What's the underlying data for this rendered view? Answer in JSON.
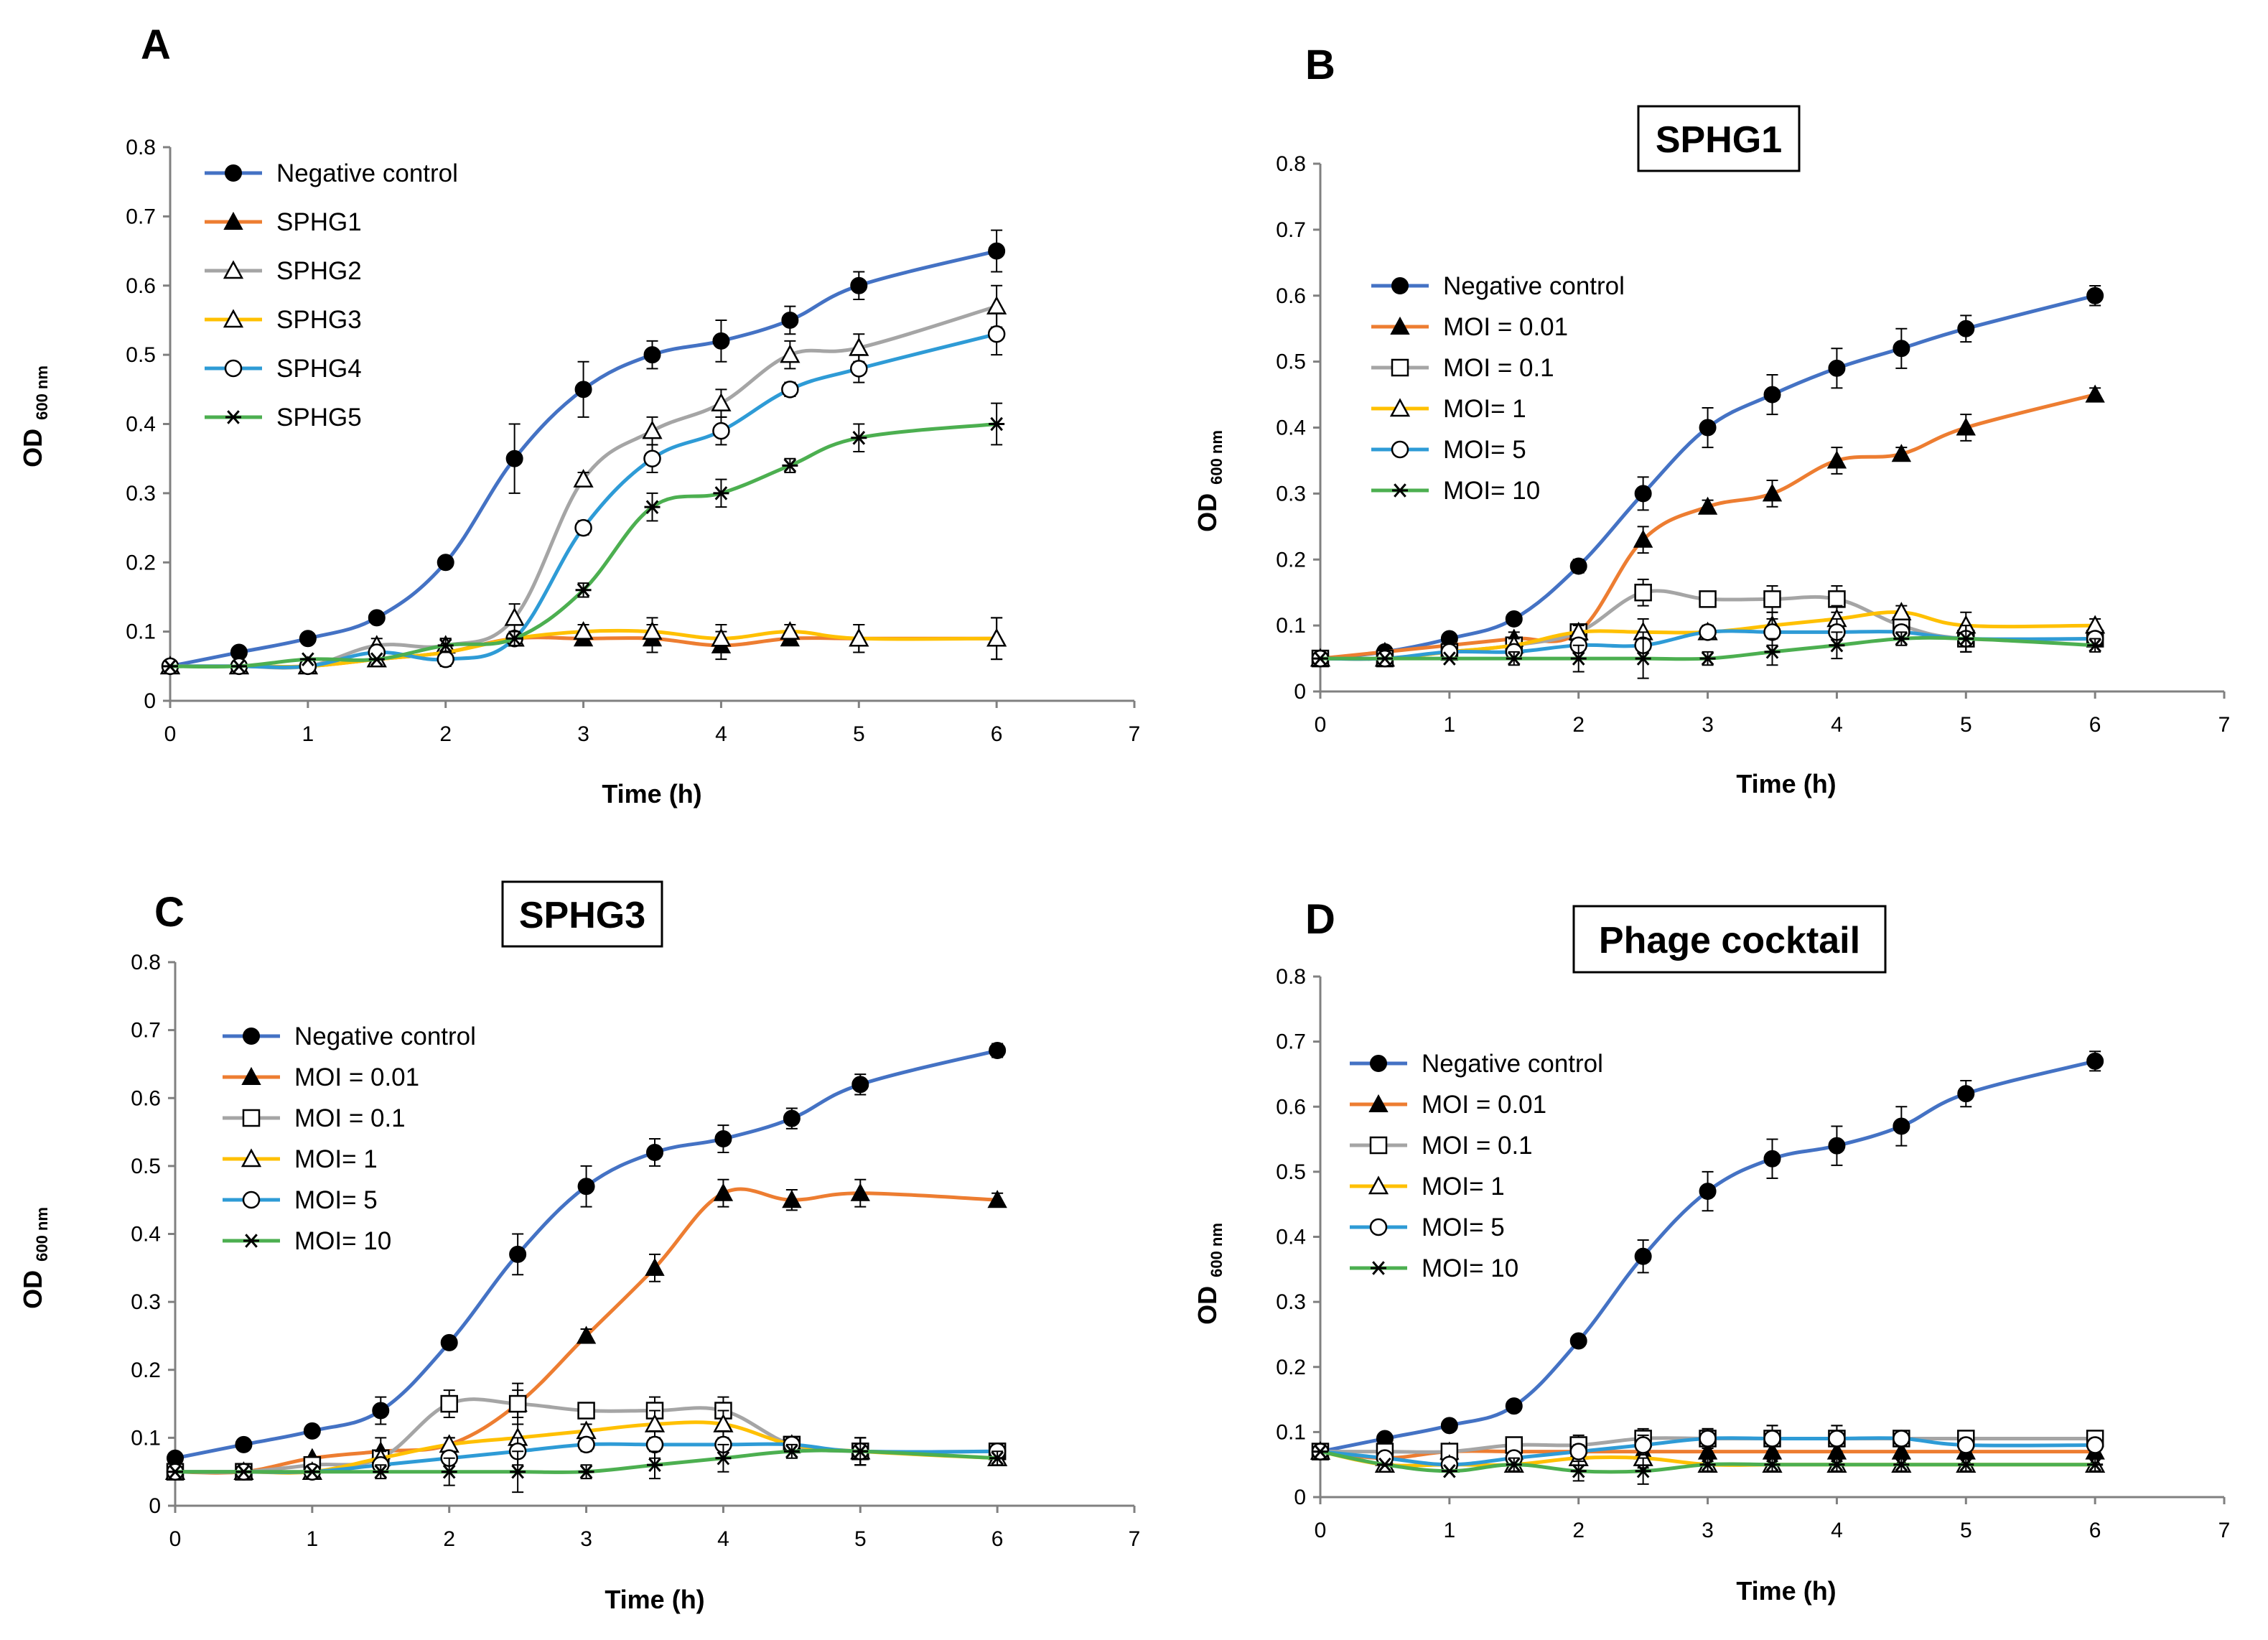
{
  "figure": {
    "panels": [
      {
        "letter": "A",
        "box_title": "",
        "xlabel": "Time (h)",
        "ylabel_main": "OD",
        "ylabel_sub": "600 nm"
      },
      {
        "letter": "B",
        "box_title": "SPHG1",
        "xlabel": "Time (h)",
        "ylabel_main": "OD",
        "ylabel_sub": "600 nm"
      },
      {
        "letter": "C",
        "box_title": "SPHG3",
        "xlabel": "Time (h)",
        "ylabel_main": "OD",
        "ylabel_sub": "600 nm"
      },
      {
        "letter": "D",
        "box_title": "Phage cocktail",
        "xlabel": "Time (h)",
        "ylabel_main": "OD",
        "ylabel_sub": "600 nm"
      }
    ]
  },
  "chart_data": [
    {
      "type": "line",
      "panel": "A",
      "title": "",
      "xlabel": "Time (h)",
      "ylabel": "OD 600 nm",
      "xlim": [
        0,
        7
      ],
      "ylim": [
        0,
        0.8
      ],
      "xticks": [
        "0",
        "1",
        "2",
        "3",
        "4",
        "5",
        "6",
        "7"
      ],
      "yticks": [
        "0",
        "0.1",
        "0.2",
        "0.3",
        "0.4",
        "0.5",
        "0.6",
        "0.7",
        "0.8"
      ],
      "legend_position": "top-left",
      "x": [
        0,
        0.5,
        1,
        1.5,
        2,
        2.5,
        3,
        3.5,
        4,
        4.5,
        5,
        6
      ],
      "series": [
        {
          "name": "Negative control",
          "color": "#4472C4",
          "marker": "circle-filled",
          "values": [
            0.05,
            0.07,
            0.09,
            0.12,
            0.2,
            0.35,
            0.45,
            0.5,
            0.52,
            0.55,
            0.6,
            0.65
          ],
          "errors": [
            0.005,
            0.005,
            0.005,
            0.005,
            0.005,
            0.05,
            0.04,
            0.02,
            0.03,
            0.02,
            0.02,
            0.03
          ]
        },
        {
          "name": "SPHG1",
          "color": "#ED7D31",
          "marker": "triangle-filled",
          "values": [
            0.05,
            0.05,
            0.05,
            0.06,
            0.07,
            0.09,
            0.09,
            0.09,
            0.08,
            0.09,
            0.09,
            0.09
          ],
          "errors": [
            0.005,
            0.005,
            0.005,
            0.005,
            0.005,
            0.01,
            0.01,
            0.02,
            0.02,
            0.01,
            0.02,
            0.03
          ]
        },
        {
          "name": "SPHG2",
          "color": "#A5A5A5",
          "marker": "triangle-open",
          "values": [
            0.05,
            0.05,
            0.05,
            0.08,
            0.08,
            0.12,
            0.32,
            0.39,
            0.43,
            0.5,
            0.51,
            0.57
          ],
          "errors": [
            0.005,
            0.005,
            0.005,
            0.01,
            0.01,
            0.02,
            0.01,
            0.02,
            0.02,
            0.02,
            0.02,
            0.03
          ]
        },
        {
          "name": "SPHG3",
          "color": "#FFC000",
          "marker": "triangle-open",
          "values": [
            0.05,
            0.05,
            0.05,
            0.06,
            0.07,
            0.09,
            0.1,
            0.1,
            0.09,
            0.1,
            0.09,
            0.09
          ],
          "errors": [
            0.005,
            0.005,
            0.005,
            0.005,
            0.005,
            0.01,
            0.01,
            0.02,
            0.02,
            0.01,
            0.02,
            0.03
          ]
        },
        {
          "name": "SPHG4",
          "color": "#2E9BD6",
          "marker": "circle-open",
          "values": [
            0.05,
            0.05,
            0.05,
            0.07,
            0.06,
            0.09,
            0.25,
            0.35,
            0.39,
            0.45,
            0.48,
            0.53
          ],
          "errors": [
            0.005,
            0.005,
            0.005,
            0.01,
            0.01,
            0.01,
            0.01,
            0.02,
            0.02,
            0.01,
            0.02,
            0.03
          ]
        },
        {
          "name": "SPHG5",
          "color": "#4CAF50",
          "marker": "asterisk",
          "values": [
            0.05,
            0.05,
            0.06,
            0.06,
            0.08,
            0.09,
            0.16,
            0.28,
            0.3,
            0.34,
            0.38,
            0.4
          ],
          "errors": [
            0.005,
            0.005,
            0.005,
            0.005,
            0.01,
            0.01,
            0.01,
            0.02,
            0.02,
            0.01,
            0.02,
            0.03
          ]
        }
      ]
    },
    {
      "type": "line",
      "panel": "B",
      "title": "SPHG1",
      "xlabel": "Time (h)",
      "ylabel": "OD 600 nm",
      "xlim": [
        0,
        7
      ],
      "ylim": [
        0,
        0.8
      ],
      "xticks": [
        "0",
        "1",
        "2",
        "3",
        "4",
        "5",
        "6",
        "7"
      ],
      "yticks": [
        "0",
        "0.1",
        "0.2",
        "0.3",
        "0.4",
        "0.5",
        "0.6",
        "0.7",
        "0.8"
      ],
      "legend_position": "middle-left",
      "x": [
        0,
        0.5,
        1,
        1.5,
        2,
        2.5,
        3,
        3.5,
        4,
        4.5,
        5,
        6
      ],
      "series": [
        {
          "name": "Negative control",
          "color": "#4472C4",
          "marker": "circle-filled",
          "values": [
            0.05,
            0.06,
            0.08,
            0.11,
            0.19,
            0.3,
            0.4,
            0.45,
            0.49,
            0.52,
            0.55,
            0.6
          ],
          "errors": [
            0.005,
            0.005,
            0.005,
            0.005,
            0.01,
            0.025,
            0.03,
            0.03,
            0.03,
            0.03,
            0.02,
            0.015
          ]
        },
        {
          "name": "MOI = 0.01",
          "color": "#ED7D31",
          "marker": "triangle-filled",
          "values": [
            0.05,
            0.06,
            0.07,
            0.08,
            0.09,
            0.23,
            0.28,
            0.3,
            0.35,
            0.36,
            0.4,
            0.45
          ],
          "errors": [
            0.005,
            0.005,
            0.005,
            0.01,
            0.01,
            0.02,
            0.01,
            0.02,
            0.02,
            0.01,
            0.02,
            0.01
          ]
        },
        {
          "name": "MOI = 0.1",
          "color": "#A5A5A5",
          "marker": "square-open",
          "values": [
            0.05,
            0.05,
            0.06,
            0.07,
            0.09,
            0.15,
            0.14,
            0.14,
            0.14,
            0.1,
            0.08,
            0.08
          ],
          "errors": [
            0.005,
            0.005,
            0.005,
            0.01,
            0.01,
            0.02,
            0.01,
            0.02,
            0.02,
            0.02,
            0.02,
            0.01
          ]
        },
        {
          "name": "MOI= 1",
          "color": "#FFC000",
          "marker": "triangle-open",
          "values": [
            0.05,
            0.05,
            0.06,
            0.07,
            0.09,
            0.09,
            0.09,
            0.1,
            0.11,
            0.12,
            0.1,
            0.1
          ],
          "errors": [
            0.005,
            0.005,
            0.005,
            0.01,
            0.01,
            0.02,
            0.01,
            0.02,
            0.02,
            0.01,
            0.02,
            0.01
          ]
        },
        {
          "name": "MOI= 5",
          "color": "#2E9BD6",
          "marker": "circle-open",
          "values": [
            0.05,
            0.05,
            0.06,
            0.06,
            0.07,
            0.07,
            0.09,
            0.09,
            0.09,
            0.09,
            0.08,
            0.08
          ],
          "errors": [
            0.005,
            0.005,
            0.005,
            0.01,
            0.01,
            0.02,
            0.01,
            0.02,
            0.02,
            0.01,
            0.02,
            0.01
          ]
        },
        {
          "name": "MOI= 10",
          "color": "#4CAF50",
          "marker": "asterisk",
          "values": [
            0.05,
            0.05,
            0.05,
            0.05,
            0.05,
            0.05,
            0.05,
            0.06,
            0.07,
            0.08,
            0.08,
            0.07
          ],
          "errors": [
            0.005,
            0.005,
            0.005,
            0.01,
            0.02,
            0.03,
            0.01,
            0.02,
            0.02,
            0.01,
            0.02,
            0.01
          ]
        }
      ]
    },
    {
      "type": "line",
      "panel": "C",
      "title": "SPHG3",
      "xlabel": "Time (h)",
      "ylabel": "OD 600 nm",
      "xlim": [
        0,
        7
      ],
      "ylim": [
        0,
        0.8
      ],
      "xticks": [
        "0",
        "1",
        "2",
        "3",
        "4",
        "5",
        "6",
        "7"
      ],
      "yticks": [
        "0",
        "0.1",
        "0.2",
        "0.3",
        "0.4",
        "0.5",
        "0.6",
        "0.7",
        "0.8"
      ],
      "legend_position": "top-left",
      "x": [
        0,
        0.5,
        1,
        1.5,
        2,
        2.5,
        3,
        3.5,
        4,
        4.5,
        5,
        6
      ],
      "series": [
        {
          "name": "Negative control",
          "color": "#4472C4",
          "marker": "circle-filled",
          "values": [
            0.07,
            0.09,
            0.11,
            0.14,
            0.24,
            0.37,
            0.47,
            0.52,
            0.54,
            0.57,
            0.62,
            0.67
          ],
          "errors": [
            0.005,
            0.005,
            0.005,
            0.02,
            0.005,
            0.03,
            0.03,
            0.02,
            0.02,
            0.015,
            0.015,
            0.01
          ]
        },
        {
          "name": "MOI = 0.01",
          "color": "#ED7D31",
          "marker": "triangle-filled",
          "values": [
            0.05,
            0.05,
            0.07,
            0.08,
            0.09,
            0.15,
            0.25,
            0.35,
            0.46,
            0.45,
            0.46,
            0.45
          ],
          "errors": [
            0.005,
            0.005,
            0.005,
            0.02,
            0.01,
            0.02,
            0.01,
            0.02,
            0.02,
            0.015,
            0.02,
            0.01
          ]
        },
        {
          "name": "MOI = 0.1",
          "color": "#A5A5A5",
          "marker": "square-open",
          "values": [
            0.05,
            0.05,
            0.06,
            0.07,
            0.15,
            0.15,
            0.14,
            0.14,
            0.14,
            0.09,
            0.08,
            0.08
          ],
          "errors": [
            0.005,
            0.005,
            0.005,
            0.01,
            0.02,
            0.03,
            0.01,
            0.02,
            0.02,
            0.01,
            0.02,
            0.01
          ]
        },
        {
          "name": "MOI= 1",
          "color": "#FFC000",
          "marker": "triangle-open",
          "values": [
            0.05,
            0.05,
            0.05,
            0.07,
            0.09,
            0.1,
            0.11,
            0.12,
            0.12,
            0.09,
            0.08,
            0.07
          ],
          "errors": [
            0.005,
            0.005,
            0.005,
            0.01,
            0.01,
            0.02,
            0.01,
            0.02,
            0.02,
            0.01,
            0.02,
            0.01
          ]
        },
        {
          "name": "MOI= 5",
          "color": "#2E9BD6",
          "marker": "circle-open",
          "values": [
            0.05,
            0.05,
            0.05,
            0.06,
            0.07,
            0.08,
            0.09,
            0.09,
            0.09,
            0.09,
            0.08,
            0.08
          ],
          "errors": [
            0.005,
            0.005,
            0.005,
            0.01,
            0.01,
            0.02,
            0.01,
            0.02,
            0.02,
            0.01,
            0.02,
            0.01
          ]
        },
        {
          "name": "MOI= 10",
          "color": "#4CAF50",
          "marker": "asterisk",
          "values": [
            0.05,
            0.05,
            0.05,
            0.05,
            0.05,
            0.05,
            0.05,
            0.06,
            0.07,
            0.08,
            0.08,
            0.07
          ],
          "errors": [
            0.005,
            0.005,
            0.005,
            0.01,
            0.02,
            0.03,
            0.01,
            0.02,
            0.02,
            0.01,
            0.02,
            0.01
          ]
        }
      ]
    },
    {
      "type": "line",
      "panel": "D",
      "title": "Phage cocktail",
      "xlabel": "Time (h)",
      "ylabel": "OD 600 nm",
      "xlim": [
        0,
        7
      ],
      "ylim": [
        0,
        0.8
      ],
      "xticks": [
        "0",
        "1",
        "2",
        "3",
        "4",
        "5",
        "6",
        "7"
      ],
      "yticks": [
        "0",
        "0.1",
        "0.2",
        "0.3",
        "0.4",
        "0.5",
        "0.6",
        "0.7",
        "0.8"
      ],
      "legend_position": "top-left",
      "x": [
        0,
        0.5,
        1,
        1.5,
        2,
        2.5,
        3,
        3.5,
        4,
        4.5,
        5,
        6
      ],
      "series": [
        {
          "name": "Negative control",
          "color": "#4472C4",
          "marker": "circle-filled",
          "values": [
            0.07,
            0.09,
            0.11,
            0.14,
            0.24,
            0.37,
            0.47,
            0.52,
            0.54,
            0.57,
            0.62,
            0.67
          ],
          "errors": [
            0.005,
            0.005,
            0.005,
            0.005,
            0.005,
            0.025,
            0.03,
            0.03,
            0.03,
            0.03,
            0.02,
            0.015
          ]
        },
        {
          "name": "MOI = 0.01",
          "color": "#ED7D31",
          "marker": "triangle-filled",
          "values": [
            0.07,
            0.06,
            0.07,
            0.07,
            0.07,
            0.07,
            0.07,
            0.07,
            0.07,
            0.07,
            0.07,
            0.07
          ],
          "errors": [
            0.005,
            0.005,
            0.005,
            0.01,
            0.01,
            0.015,
            0.015,
            0.015,
            0.015,
            0.01,
            0.01,
            0.01
          ]
        },
        {
          "name": "MOI = 0.1",
          "color": "#A5A5A5",
          "marker": "square-open",
          "values": [
            0.07,
            0.07,
            0.07,
            0.08,
            0.08,
            0.09,
            0.09,
            0.09,
            0.09,
            0.09,
            0.09,
            0.09
          ],
          "errors": [
            0.005,
            0.005,
            0.01,
            0.01,
            0.015,
            0.015,
            0.015,
            0.02,
            0.02,
            0.01,
            0.01,
            0.01
          ]
        },
        {
          "name": "MOI= 1",
          "color": "#FFC000",
          "marker": "triangle-open",
          "values": [
            0.07,
            0.05,
            0.05,
            0.05,
            0.06,
            0.06,
            0.05,
            0.05,
            0.05,
            0.05,
            0.05,
            0.05
          ],
          "errors": [
            0.005,
            0.005,
            0.005,
            0.01,
            0.01,
            0.015,
            0.01,
            0.01,
            0.01,
            0.01,
            0.01,
            0.01
          ]
        },
        {
          "name": "MOI= 5",
          "color": "#2E9BD6",
          "marker": "circle-open",
          "values": [
            0.07,
            0.06,
            0.05,
            0.06,
            0.07,
            0.08,
            0.09,
            0.09,
            0.09,
            0.09,
            0.08,
            0.08
          ],
          "errors": [
            0.005,
            0.005,
            0.005,
            0.01,
            0.01,
            0.015,
            0.015,
            0.02,
            0.02,
            0.01,
            0.01,
            0.01
          ]
        },
        {
          "name": "MOI= 10",
          "color": "#4CAF50",
          "marker": "asterisk",
          "values": [
            0.07,
            0.05,
            0.04,
            0.05,
            0.04,
            0.04,
            0.05,
            0.05,
            0.05,
            0.05,
            0.05,
            0.05
          ],
          "errors": [
            0.005,
            0.005,
            0.005,
            0.01,
            0.015,
            0.02,
            0.01,
            0.01,
            0.01,
            0.01,
            0.01,
            0.01
          ]
        }
      ]
    }
  ]
}
